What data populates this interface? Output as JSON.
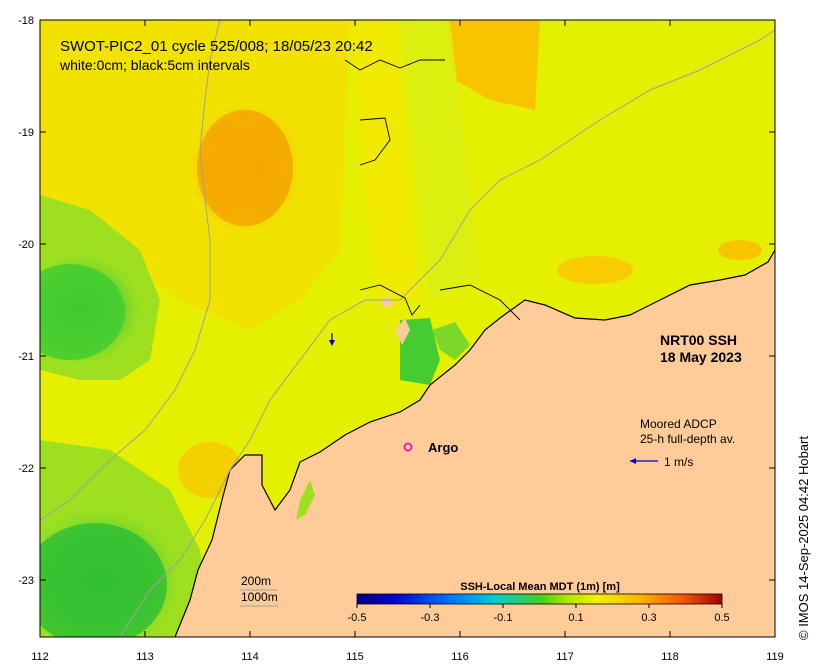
{
  "map": {
    "title_line1": "SWOT-PIC2_01 cycle 525/008; 18/05/23 20:42",
    "title_line2": "white:0cm; black:5cm intervals",
    "product_line1": "NRT00 SSH",
    "product_line2": "18 May 2023",
    "adcp_line1": "Moored ADCP",
    "adcp_line2": "25-h full-depth av.",
    "arrow_label": "1 m/s",
    "argo_label": "Argo",
    "isobath_200": "200m",
    "isobath_1000": "1000m",
    "colorbar": {
      "title": "SSH-Local Mean MDT (1m) [m]",
      "ticks": [
        "-0.5",
        "-0.3",
        "-0.1",
        "0.1",
        "0.3",
        "0.5"
      ],
      "range": [
        -0.5,
        0.5
      ]
    },
    "x_axis_ticks": [
      "112",
      "113",
      "114",
      "115",
      "116",
      "117",
      "118",
      "119"
    ],
    "y_axis_ticks": [
      "-18",
      "-19",
      "-20",
      "-21",
      "-22",
      "-23"
    ],
    "extent": {
      "lon": [
        112,
        119
      ],
      "lat": [
        -23.5,
        -18
      ]
    },
    "credit": "© IMOS 14-Sep-2025 04:42 Hobart",
    "colors": {
      "land": "#FFCC99",
      "sea_base": "#E4F000",
      "warm_anomaly": "#FBB100",
      "strong_warm": "#F5A000",
      "cool_anomaly": "#66DD22",
      "strong_cool": "#22BB33",
      "argo_marker": "#E020D0",
      "arrow": "#0000CC",
      "isobath": "#A0A0A0"
    }
  }
}
